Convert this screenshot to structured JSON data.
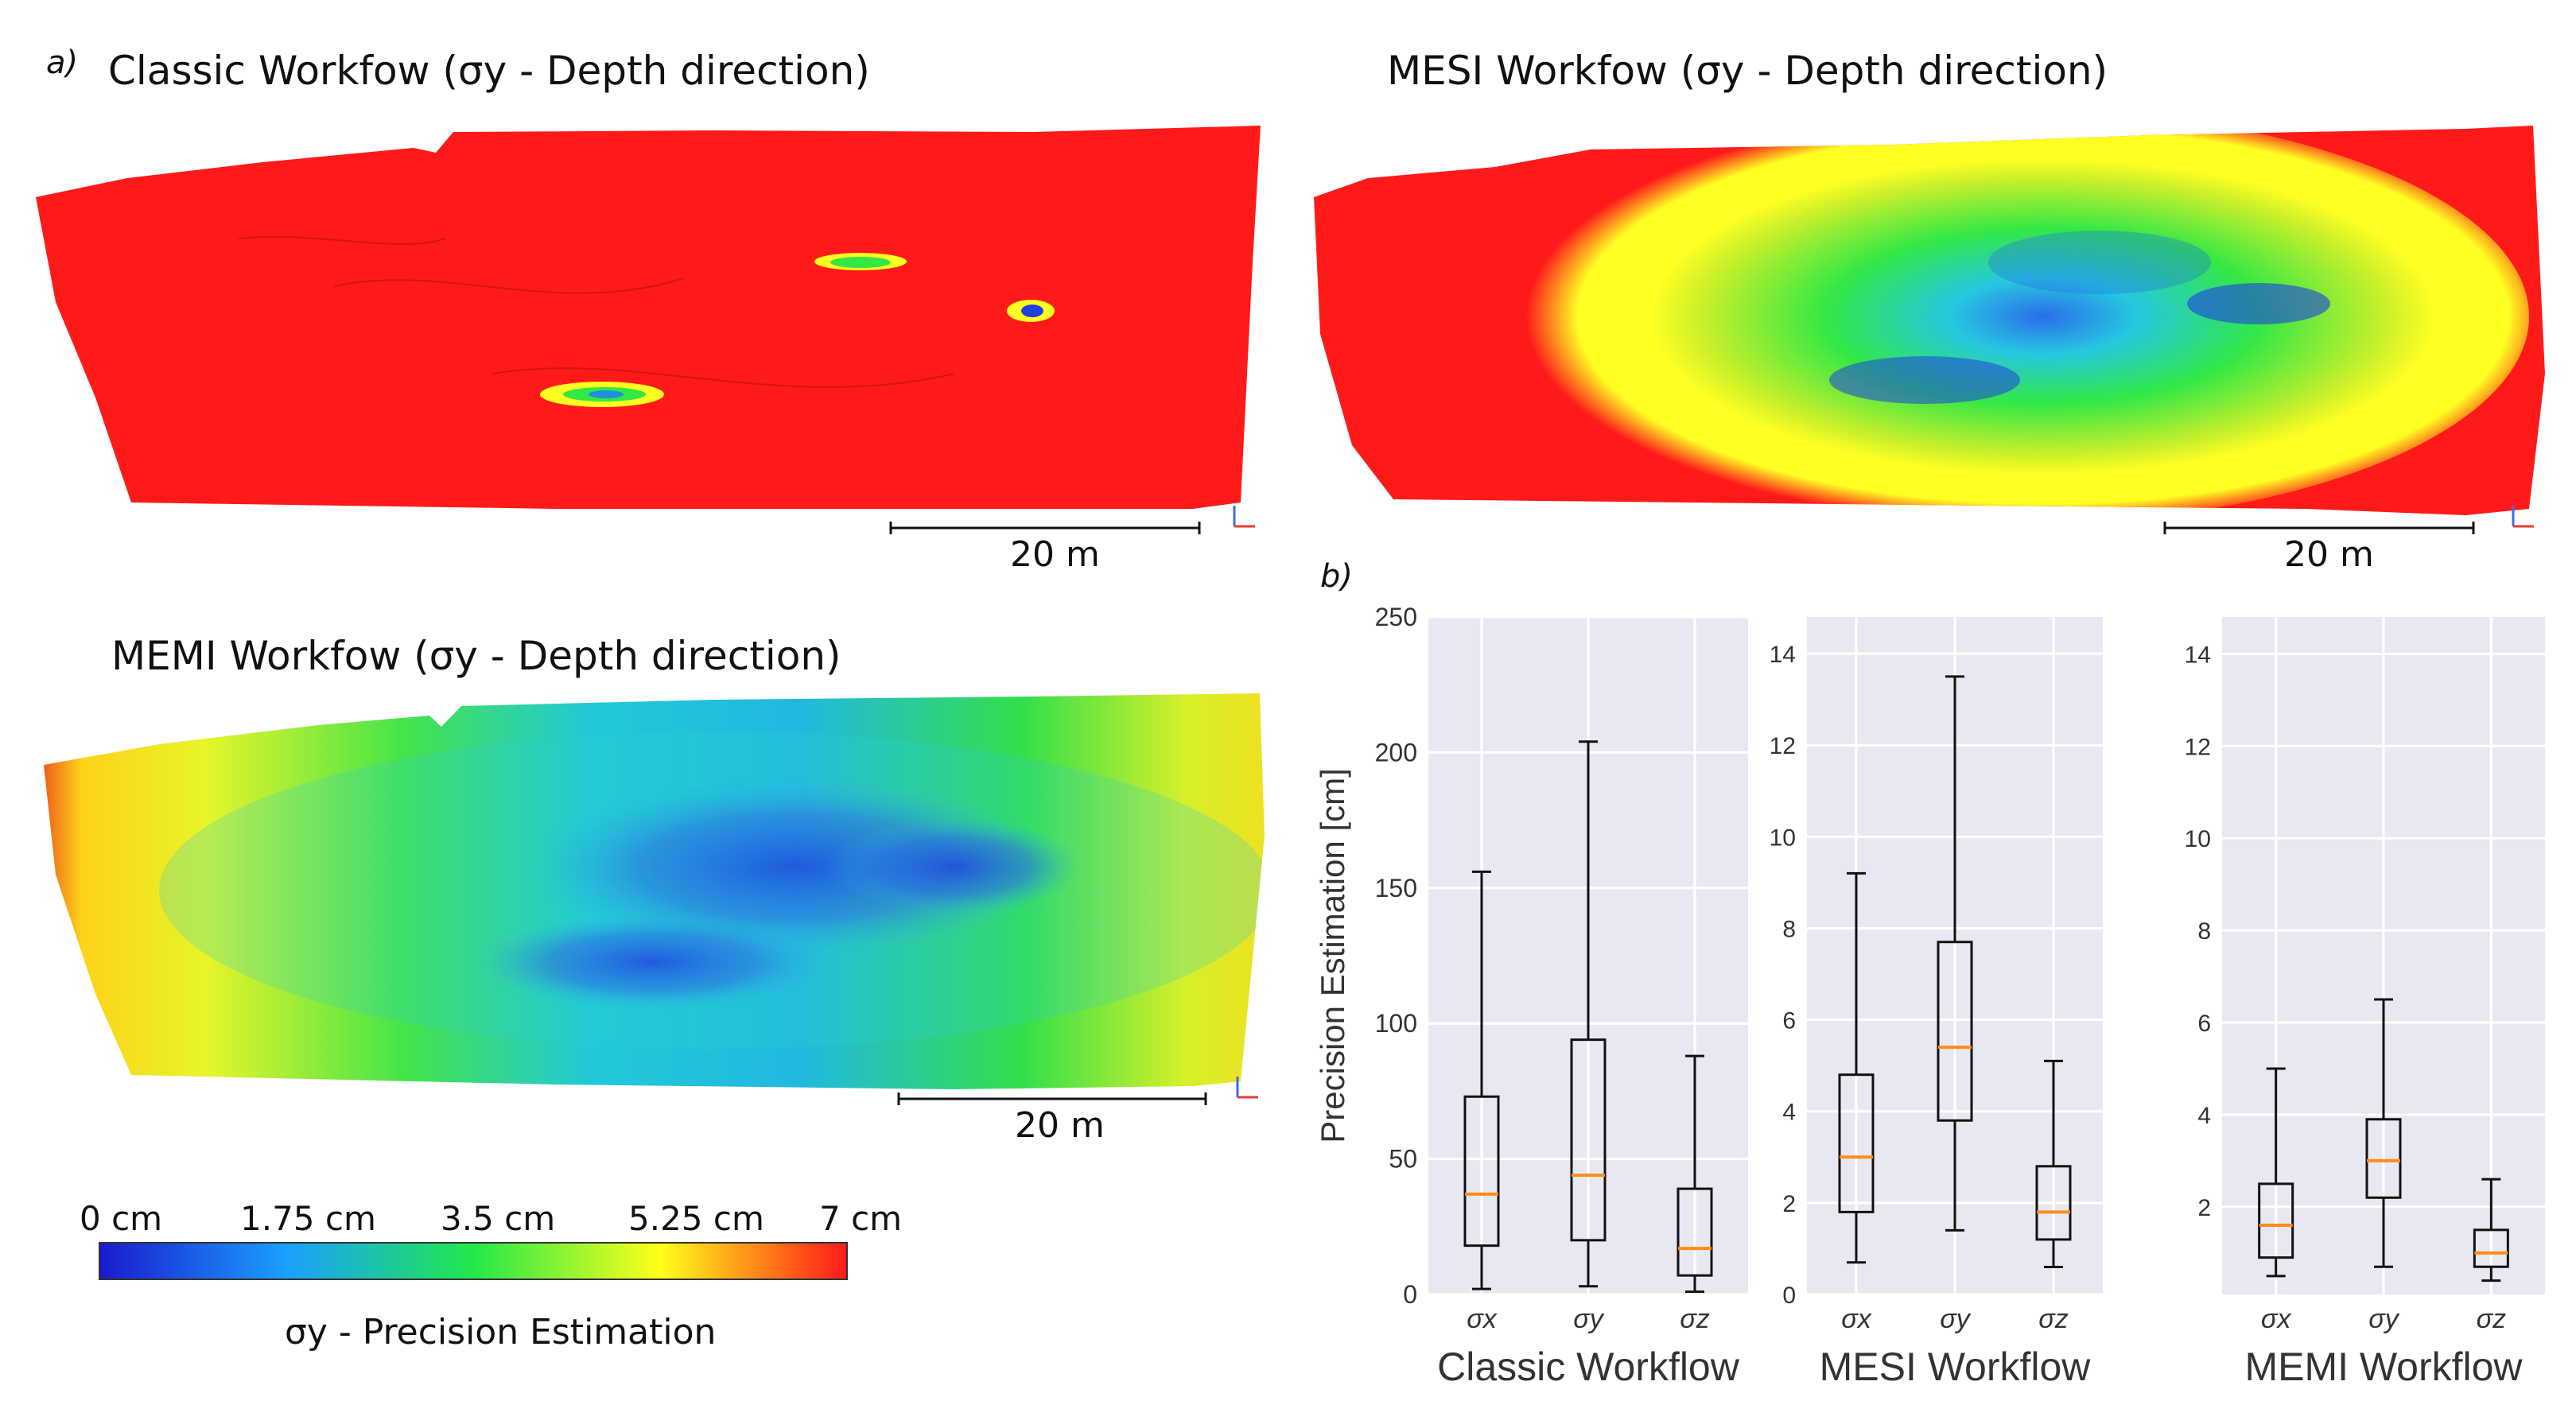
{
  "figure": {
    "panel_a_letter": "a)",
    "panel_b_letter": "b)"
  },
  "maps": [
    {
      "id": "classic",
      "title": "Classic Workfow (σy - Depth direction)",
      "scale_label": "20 m"
    },
    {
      "id": "mesi",
      "title": "MESI Workfow (σy - Depth direction)",
      "scale_label": "20 m"
    },
    {
      "id": "memi",
      "title": "MEMI Workfow (σy - Depth direction)",
      "scale_label": "20 m"
    }
  ],
  "colorbar": {
    "ticks": [
      "0 cm",
      "1.75 cm",
      "3.5 cm",
      "5.25 cm",
      "7 cm"
    ],
    "title": "σy - Precision Estimation",
    "colors": [
      "#1a1acc",
      "#1aa0ff",
      "#22e84a",
      "#ffff1a",
      "#ff1a1a"
    ]
  },
  "colors": {
    "red": "#ff1a1a",
    "yellow": "#ffff22",
    "green": "#33e845",
    "cyan": "#22cce8",
    "blue": "#1f3fe0",
    "plot_bg": "#e8e8f2",
    "median": "#ff8c1a"
  },
  "chart_data": [
    {
      "type": "box",
      "title": "Classic Workflow",
      "ylabel": "Precision Estimation [cm]",
      "ylim": [
        0,
        250
      ],
      "yticks": [
        0,
        50,
        100,
        150,
        200,
        250
      ],
      "categories": [
        "σx",
        "σy",
        "σz"
      ],
      "boxes": [
        {
          "min": 2,
          "q1": 18,
          "median": 37,
          "q3": 73,
          "max": 156
        },
        {
          "min": 3,
          "q1": 20,
          "median": 44,
          "q3": 94,
          "max": 204
        },
        {
          "min": 1,
          "q1": 7,
          "median": 17,
          "q3": 39,
          "max": 88
        }
      ]
    },
    {
      "type": "box",
      "title": "MESI Workflow",
      "ylabel": "",
      "ylim": [
        0,
        14.8
      ],
      "yticks": [
        0,
        2,
        4,
        6,
        8,
        10,
        12,
        14
      ],
      "categories": [
        "σx",
        "σy",
        "σz"
      ],
      "boxes": [
        {
          "min": 0.7,
          "q1": 1.8,
          "median": 3.0,
          "q3": 4.8,
          "max": 9.2
        },
        {
          "min": 1.4,
          "q1": 3.8,
          "median": 5.4,
          "q3": 7.7,
          "max": 13.5
        },
        {
          "min": 0.6,
          "q1": 1.2,
          "median": 1.8,
          "q3": 2.8,
          "max": 5.1
        }
      ]
    },
    {
      "type": "box",
      "title": "MEMI Workflow",
      "ylabel": "",
      "ylim": [
        0.1,
        14.8
      ],
      "yticks": [
        2,
        4,
        6,
        8,
        10,
        12,
        14
      ],
      "categories": [
        "σx",
        "σy",
        "σz"
      ],
      "boxes": [
        {
          "min": 0.5,
          "q1": 0.9,
          "median": 1.6,
          "q3": 2.5,
          "max": 5.0
        },
        {
          "min": 0.7,
          "q1": 2.2,
          "median": 3.0,
          "q3": 3.9,
          "max": 6.5
        },
        {
          "min": 0.4,
          "q1": 0.7,
          "median": 1.0,
          "q3": 1.5,
          "max": 2.6
        }
      ]
    }
  ]
}
